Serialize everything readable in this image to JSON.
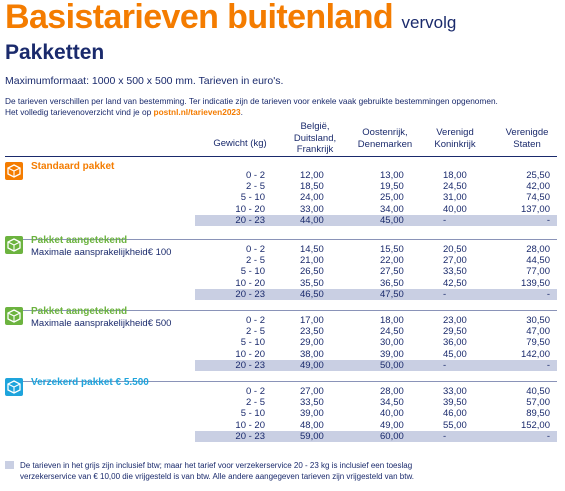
{
  "header": {
    "title": "Basistarieven buitenland",
    "title_suffix": "vervolg",
    "subtitle": "Pakketten",
    "max_format": "Maximumformaat: 1000 x 500 x 500 mm. Tarieven in euro's.",
    "intro_line1": "De tarieven verschillen per land van bestemming. Ter indicatie zijn de tarieven voor enkele vaak gebruikte bestemmingen opgenomen.",
    "intro_line2_prefix": "Het volledig tarievenoverzicht vind je op ",
    "intro_link": "postnl.nl/tarieven2023",
    "intro_line2_suffix": "."
  },
  "columns": {
    "weight": "Gewicht (kg)",
    "col1": [
      "België,",
      "Duitsland,",
      "Frankrijk"
    ],
    "col2": [
      "Oostenrijk,",
      "Denemarken"
    ],
    "col3": [
      "Verenigd",
      "Koninkrijk"
    ],
    "col4": [
      "Verenigde",
      "Staten"
    ]
  },
  "colors": {
    "orange": "#f47c00",
    "green": "#6cb33f",
    "blue": "#1ea4dc",
    "navy": "#1a2a6c",
    "grey_row": "#c9cfe3"
  },
  "products": [
    {
      "name": "Standaard pakket",
      "subtitle": "",
      "icon": "package-icon",
      "color": "#f47c00",
      "rows": [
        {
          "w": "0 - 2",
          "c1": "12,00",
          "c2": "13,00",
          "c3": "18,00",
          "c4": "25,50"
        },
        {
          "w": "2 - 5",
          "c1": "18,50",
          "c2": "19,50",
          "c3": "24,50",
          "c4": "42,00"
        },
        {
          "w": "5 - 10",
          "c1": "24,00",
          "c2": "25,00",
          "c3": "31,00",
          "c4": "74,50"
        },
        {
          "w": "10 - 20",
          "c1": "33,00",
          "c2": "34,00",
          "c3": "40,00",
          "c4": "137,00"
        },
        {
          "w": "20 - 23",
          "c1": "44,00",
          "c2": "45,00",
          "c3": "-",
          "c4": "-"
        }
      ]
    },
    {
      "name": "Pakket aangetekend",
      "subtitle": "Maximale aansprakelijkheid€ 100",
      "icon": "registered-package-icon",
      "color": "#6cb33f",
      "rows": [
        {
          "w": "0 - 2",
          "c1": "14,50",
          "c2": "15,50",
          "c3": "20,50",
          "c4": "28,00"
        },
        {
          "w": "2 - 5",
          "c1": "21,00",
          "c2": "22,00",
          "c3": "27,00",
          "c4": "44,50"
        },
        {
          "w": "5 - 10",
          "c1": "26,50",
          "c2": "27,50",
          "c3": "33,50",
          "c4": "77,00"
        },
        {
          "w": "10 - 20",
          "c1": "35,50",
          "c2": "36,50",
          "c3": "42,50",
          "c4": "139,50"
        },
        {
          "w": "20 - 23",
          "c1": "46,50",
          "c2": "47,50",
          "c3": "-",
          "c4": "-"
        }
      ]
    },
    {
      "name": "Pakket aangetekend",
      "subtitle": "Maximale aansprakelijkheid€ 500",
      "icon": "registered-package-icon",
      "color": "#6cb33f",
      "rows": [
        {
          "w": "0 - 2",
          "c1": "17,00",
          "c2": "18,00",
          "c3": "23,00",
          "c4": "30,50"
        },
        {
          "w": "2 - 5",
          "c1": "23,50",
          "c2": "24,50",
          "c3": "29,50",
          "c4": "47,00"
        },
        {
          "w": "5 - 10",
          "c1": "29,00",
          "c2": "30,00",
          "c3": "36,00",
          "c4": "79,50"
        },
        {
          "w": "10 - 20",
          "c1": "38,00",
          "c2": "39,00",
          "c3": "45,00",
          "c4": "142,00"
        },
        {
          "w": "20 - 23",
          "c1": "49,00",
          "c2": "50,00",
          "c3": "-",
          "c4": "-"
        }
      ]
    },
    {
      "name": "Verzekerd pakket € 5.500",
      "subtitle": "",
      "icon": "insured-package-icon",
      "color": "#1ea4dc",
      "rows": [
        {
          "w": "0 - 2",
          "c1": "27,00",
          "c2": "28,00",
          "c3": "33,00",
          "c4": "40,50"
        },
        {
          "w": "2 - 5",
          "c1": "33,50",
          "c2": "34,50",
          "c3": "39,50",
          "c4": "57,00"
        },
        {
          "w": "5 - 10",
          "c1": "39,00",
          "c2": "40,00",
          "c3": "46,00",
          "c4": "89,50"
        },
        {
          "w": "10 - 20",
          "c1": "48,00",
          "c2": "49,00",
          "c3": "55,00",
          "c4": "152,00"
        },
        {
          "w": "20 - 23",
          "c1": "59,00",
          "c2": "60,00",
          "c3": "-",
          "c4": "-"
        }
      ]
    }
  ],
  "footnote": {
    "line1": "De tarieven in het grijs zijn inclusief btw; maar het tarief voor verzekerservice 20 - 23 kg is inclusief een toeslag",
    "line2": "verzekerservice van € 10,00 die vrijgesteld is van btw. Alle andere aangegeven tarieven zijn vrijgesteld van btw."
  }
}
